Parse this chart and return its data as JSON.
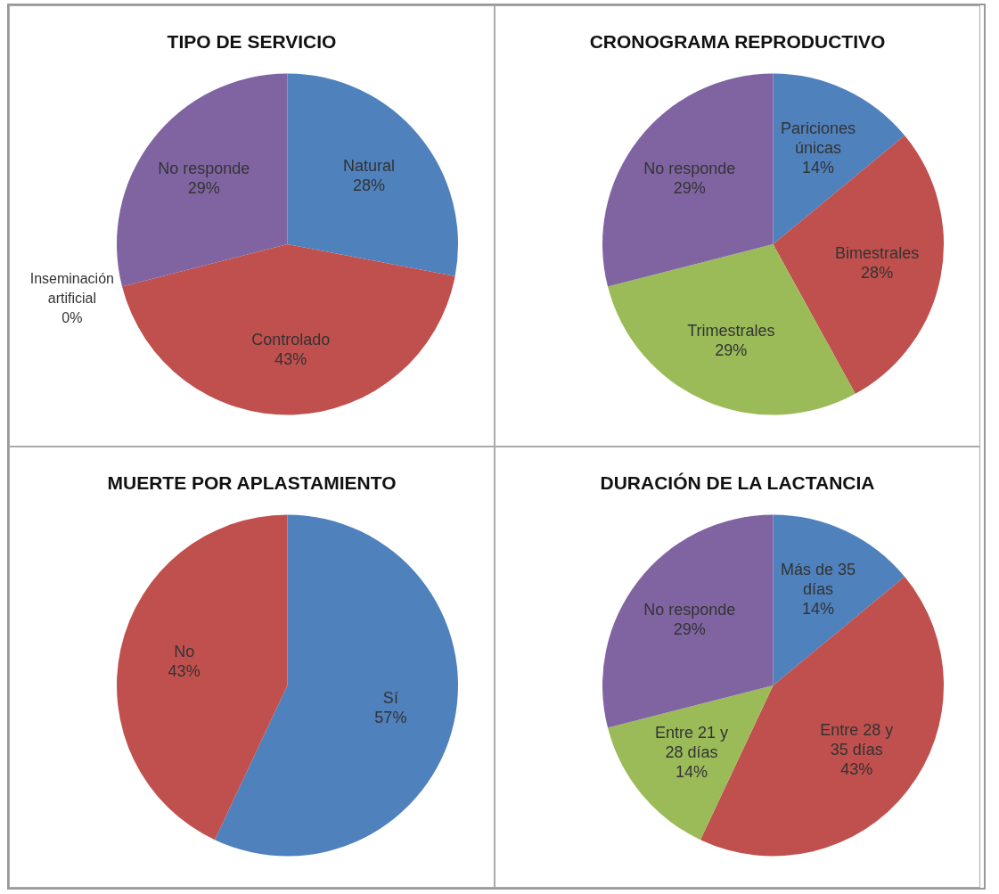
{
  "chart_data": [
    {
      "type": "pie",
      "title": "TIPO DE SERVICIO",
      "categories": [
        "Natural",
        "Controlado",
        "Inseminación artificial",
        "No responde"
      ],
      "values": [
        28,
        43,
        0,
        29
      ],
      "colors": [
        "#4f81bd",
        "#c0504d",
        "#9bbb59",
        "#8064a2"
      ],
      "value_labels": [
        "28%",
        "43%",
        "0%",
        "29%"
      ],
      "legend": false
    },
    {
      "type": "pie",
      "title": "CRONOGRAMA REPRODUCTIVO",
      "categories": [
        "Pariciones únicas",
        "Bimestrales",
        "Trimestrales",
        "No responde"
      ],
      "values": [
        14,
        28,
        29,
        29
      ],
      "colors": [
        "#4f81bd",
        "#c0504d",
        "#9bbb59",
        "#8064a2"
      ],
      "value_labels": [
        "14%",
        "28%",
        "29%",
        "29%"
      ],
      "legend": false
    },
    {
      "type": "pie",
      "title": "MUERTE POR APLASTAMIENTO",
      "categories": [
        "Sí",
        "No"
      ],
      "values": [
        57,
        43
      ],
      "colors": [
        "#4f81bd",
        "#c0504d"
      ],
      "value_labels": [
        "57%",
        "43%"
      ],
      "legend": false
    },
    {
      "type": "pie",
      "title": "DURACIÓN DE LA LACTANCIA",
      "categories": [
        "Más de 35 días",
        "Entre 28 y 35 días",
        "Entre 21 y 28 días",
        "No responde"
      ],
      "values": [
        14,
        43,
        14,
        29
      ],
      "colors": [
        "#4f81bd",
        "#c0504d",
        "#9bbb59",
        "#8064a2"
      ],
      "value_labels": [
        "14%",
        "43%",
        "14%",
        "29%"
      ],
      "legend": false
    }
  ]
}
